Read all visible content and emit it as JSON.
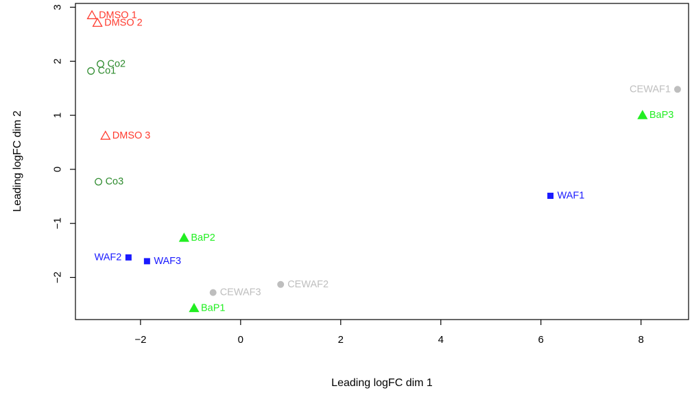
{
  "chart_data": {
    "type": "scatter",
    "title": "",
    "xlabel": "Leading logFC dim 1",
    "ylabel": "Leading logFC dim 2",
    "xlim": [
      -3.3,
      8.95
    ],
    "ylim": [
      -2.78,
      3.07
    ],
    "xticks": [
      -2,
      0,
      2,
      4,
      6,
      8
    ],
    "yticks": [
      -2,
      -1,
      0,
      1,
      2,
      3
    ],
    "grid": false,
    "legend": "none",
    "points": [
      {
        "label": "DMSO 1",
        "x": -2.97,
        "y": 2.85,
        "shape": "triangle-open",
        "color": "#ff3b2f",
        "label_side": "right"
      },
      {
        "label": "DMSO 2",
        "x": -2.86,
        "y": 2.71,
        "shape": "triangle-open",
        "color": "#ff3b2f",
        "label_side": "right"
      },
      {
        "label": "DMSO 3",
        "x": -2.7,
        "y": 0.62,
        "shape": "triangle-open",
        "color": "#ff3b2f",
        "label_side": "right"
      },
      {
        "label": "Co2",
        "x": -2.8,
        "y": 1.95,
        "shape": "circle-open",
        "color": "#2e8b2e",
        "label_side": "right"
      },
      {
        "label": "Co1",
        "x": -2.99,
        "y": 1.82,
        "shape": "circle-open",
        "color": "#2e8b2e",
        "label_side": "right"
      },
      {
        "label": "Co3",
        "x": -2.84,
        "y": -0.23,
        "shape": "circle-open",
        "color": "#2e8b2e",
        "label_side": "right"
      },
      {
        "label": "CEWAF1",
        "x": 8.73,
        "y": 1.48,
        "shape": "circle-filled",
        "color": "#bebebe",
        "label_side": "left"
      },
      {
        "label": "CEWAF2",
        "x": 0.8,
        "y": -2.13,
        "shape": "circle-filled",
        "color": "#bebebe",
        "label_side": "right"
      },
      {
        "label": "CEWAF3",
        "x": -0.55,
        "y": -2.28,
        "shape": "circle-filled",
        "color": "#bebebe",
        "label_side": "right"
      },
      {
        "label": "BaP3",
        "x": 8.03,
        "y": 1.0,
        "shape": "triangle-filled",
        "color": "#22ee22",
        "label_side": "right"
      },
      {
        "label": "BaP2",
        "x": -1.13,
        "y": -1.27,
        "shape": "triangle-filled",
        "color": "#22ee22",
        "label_side": "right"
      },
      {
        "label": "BaP1",
        "x": -0.93,
        "y": -2.57,
        "shape": "triangle-filled",
        "color": "#22ee22",
        "label_side": "right"
      },
      {
        "label": "WAF1",
        "x": 6.19,
        "y": -0.49,
        "shape": "square-filled",
        "color": "#1a1aff",
        "label_side": "right"
      },
      {
        "label": "WAF2",
        "x": -2.24,
        "y": -1.63,
        "shape": "square-filled",
        "color": "#1a1aff",
        "label_side": "left"
      },
      {
        "label": "WAF3",
        "x": -1.87,
        "y": -1.7,
        "shape": "square-filled",
        "color": "#1a1aff",
        "label_side": "right"
      }
    ]
  }
}
